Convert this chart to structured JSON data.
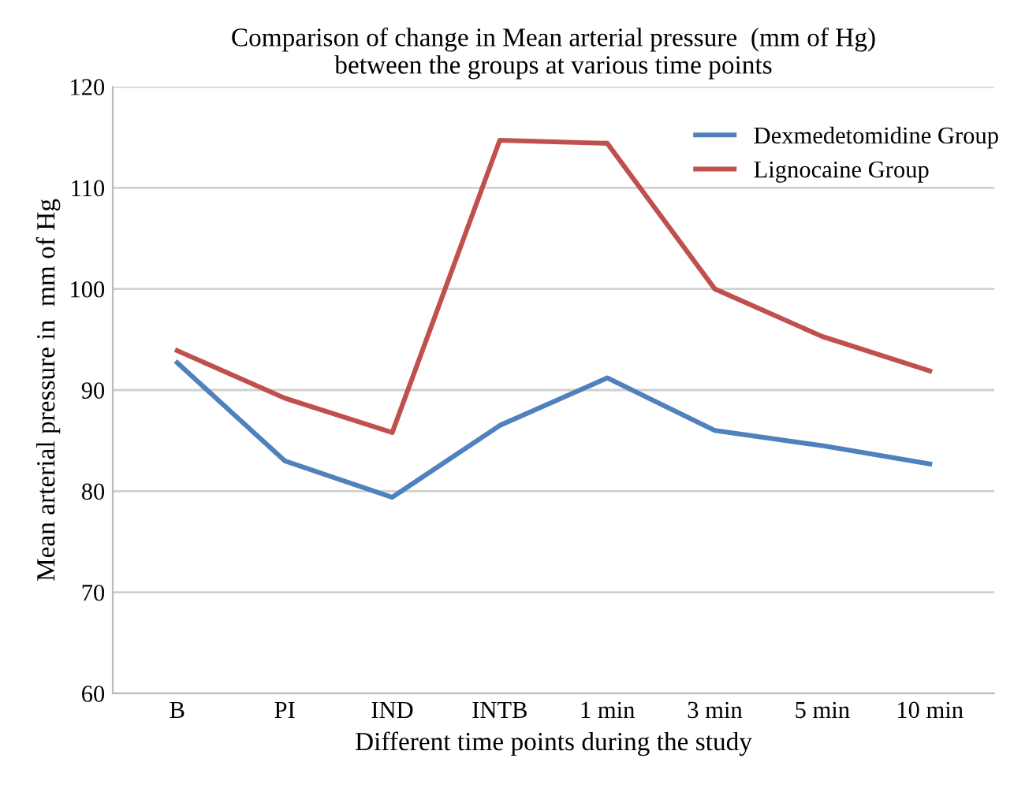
{
  "chart_data": {
    "type": "line",
    "title": "Comparison of change in Mean arterial pressure  (mm of Hg)\nbetween the groups at various time points",
    "xlabel": "Different time points during the study",
    "ylabel": "Mean arterial pressure in  mm of Hg",
    "categories": [
      "B",
      "PI",
      "IND",
      "INTB",
      "1 min",
      "3 min",
      "5 min",
      "10 min"
    ],
    "series": [
      {
        "name": "Dexmedetomidine Group",
        "color": "#4f81bd",
        "values": [
          92.7,
          83.0,
          79.4,
          86.5,
          91.2,
          86.0,
          84.5,
          82.7
        ]
      },
      {
        "name": "Lignocaine Group",
        "color": "#c0504d",
        "values": [
          93.9,
          89.2,
          85.8,
          114.7,
          114.4,
          100.0,
          95.3,
          91.9
        ]
      }
    ],
    "ylim": [
      60,
      120
    ],
    "yticks": [
      60,
      70,
      80,
      90,
      100,
      110,
      120
    ],
    "grid": "y",
    "legend": "top right",
    "marker": "none",
    "line_style": "solid"
  }
}
